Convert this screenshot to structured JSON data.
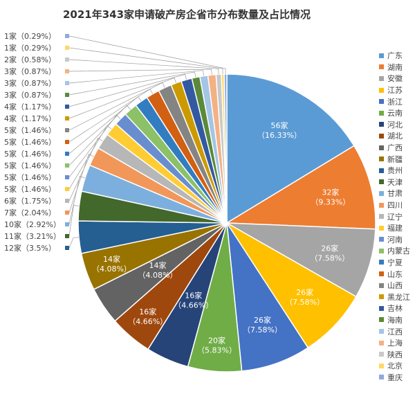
{
  "chart_data": {
    "type": "pie",
    "title": "2021年343家申请破产房企省市分布数量及占比情况",
    "categories": [
      "广东",
      "湖南",
      "安徽",
      "江苏",
      "浙江",
      "云南",
      "河北",
      "湖北",
      "广西",
      "新疆",
      "贵州",
      "天津",
      "甘肃",
      "四川",
      "辽宁",
      "福建",
      "河南",
      "内蒙古",
      "宁夏",
      "山东",
      "山西",
      "黑龙江",
      "吉林",
      "海南",
      "江西",
      "上海",
      "陕西",
      "北京",
      "重庆"
    ],
    "values": [
      56,
      32,
      26,
      26,
      26,
      20,
      16,
      16,
      14,
      14,
      12,
      11,
      10,
      7,
      6,
      5,
      5,
      5,
      5,
      5,
      5,
      4,
      4,
      3,
      3,
      3,
      2,
      1,
      1
    ],
    "percents": [
      "16.33%",
      "9.33%",
      "7.58%",
      "7.58%",
      "7.58%",
      "5.83%",
      "4.66%",
      "4.66%",
      "4.08%",
      "4.08%",
      "3.5%",
      "3.21%",
      "2.92%",
      "2.04%",
      "1.75%",
      "1.46%",
      "1.46%",
      "1.46%",
      "1.46%",
      "1.46%",
      "1.46%",
      "1.17%",
      "1.17%",
      "0.87%",
      "0.87%",
      "0.87%",
      "0.58%",
      "0.29%",
      "0.29%"
    ],
    "unit": "家",
    "colors": [
      "#5B9BD5",
      "#ED7D31",
      "#A5A5A5",
      "#FFC000",
      "#4472C4",
      "#70AD47",
      "#264478",
      "#9E480E",
      "#636363",
      "#997300",
      "#255E91",
      "#43682B",
      "#7CAFDD",
      "#F1975A",
      "#B7B7B7",
      "#FFCD33",
      "#698ED0",
      "#8CC168",
      "#327DC2",
      "#D26012",
      "#848484",
      "#CC9A00",
      "#335AA1",
      "#5A8A39",
      "#A3C5E6",
      "#F4B183",
      "#C9C9C9",
      "#FFD966",
      "#8FAADC"
    ],
    "legend_position": "right"
  }
}
